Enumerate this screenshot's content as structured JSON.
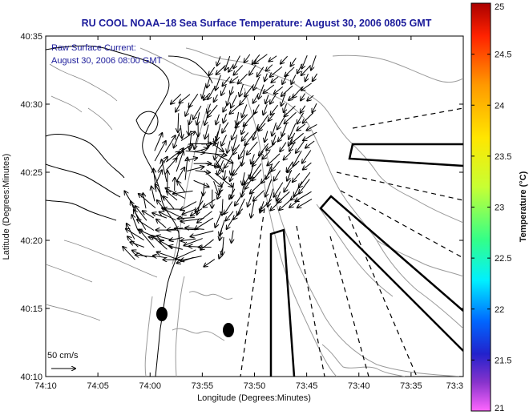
{
  "title": "RU COOL  NOAA–18  Sea Surface Temperature:  August 30, 2006 0805 GMT",
  "annotation_line1": "Raw Surface Current:",
  "annotation_line2": "August 30, 2006 08:00 GMT",
  "scale_label": "50 cm/s",
  "x_axis_label": "Longitude (Degrees:Minutes)",
  "y_axis_label": "Latitude (Degrees:Minutes)",
  "x_ticks": [
    "74:10",
    "74:05",
    "74:00",
    "73:55",
    "73:50",
    "73:45",
    "73:40",
    "73:35",
    "73:3"
  ],
  "y_ticks": [
    "40:35",
    "40:30",
    "40:25",
    "40:20",
    "40:15",
    "40:10"
  ],
  "colorbar": {
    "label": "Temperature (°C)",
    "ticks": [
      "25",
      "24.5",
      "24",
      "23.5",
      "23",
      "22.5",
      "22",
      "21.5",
      "21"
    ],
    "colors": [
      "#cc0000",
      "#ff3300",
      "#ff9900",
      "#ffe000",
      "#c8ff00",
      "#33ff66",
      "#00ffcc",
      "#00ccff",
      "#0066ff",
      "#1a1acc",
      "#6633cc",
      "#cc33cc",
      "#ff66ff"
    ]
  },
  "colors": {
    "title": "#1a1a9a",
    "land_line": "#000000",
    "bathy": "#999999",
    "vector": "#000000"
  },
  "chart_data": {
    "type": "map",
    "title": "RU COOL  NOAA–18  Sea Surface Temperature:  August 30, 2006 0805 GMT",
    "xlabel": "Longitude (Degrees:Minutes)",
    "ylabel": "Latitude (Degrees:Minutes)",
    "x_ticks": [
      "74:10",
      "74:05",
      "74:00",
      "73:55",
      "73:50",
      "73:45",
      "73:40",
      "73:35",
      "73:3"
    ],
    "y_ticks": [
      "40:35",
      "40:30",
      "40:25",
      "40:20",
      "40:15",
      "40:10"
    ],
    "colorbar_range": [
      21,
      25
    ],
    "grid": false,
    "legend": "right colorbar"
  }
}
